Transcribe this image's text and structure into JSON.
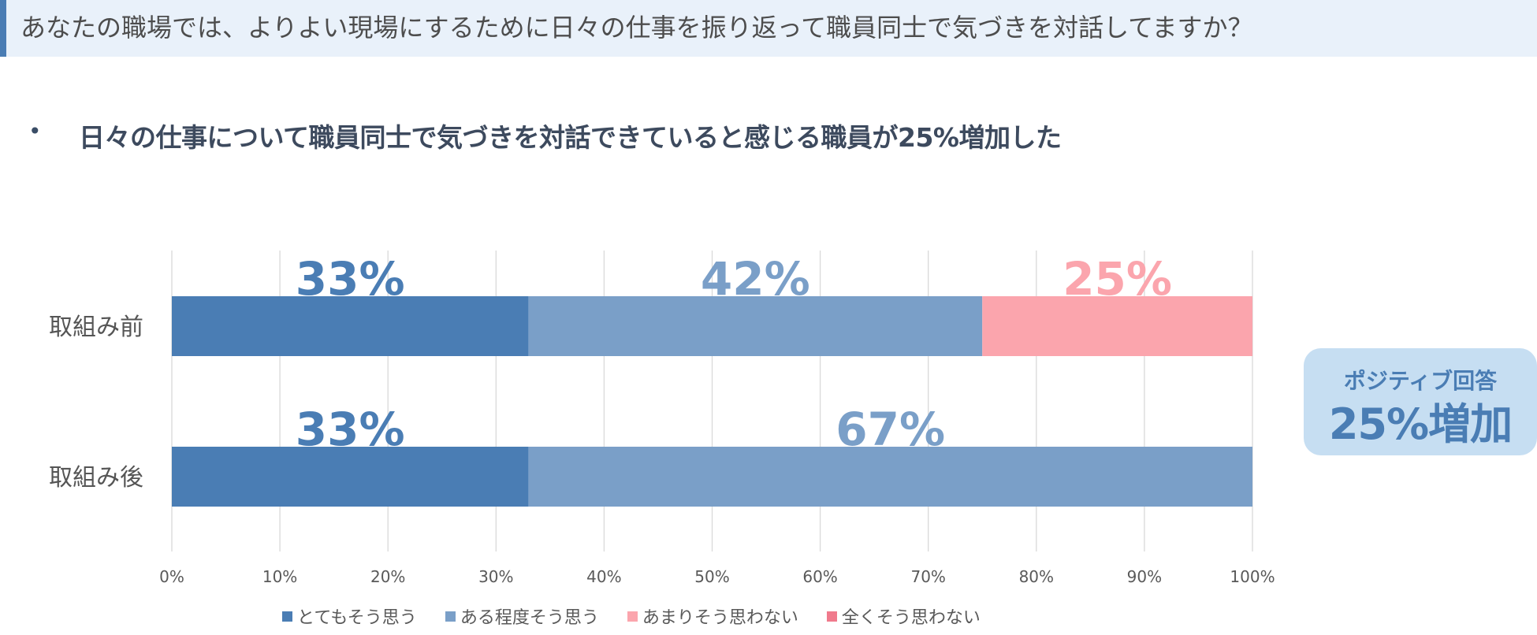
{
  "header": {
    "title": "あなたの職場では、よりよい現場にするために日々の仕事を振り返って職員同士で気づきを対話してますか？"
  },
  "bullet": {
    "mark": "•",
    "text": "日々の仕事について職員同士で気づきを対話できていると感じる職員が25%増加した"
  },
  "badge": {
    "line1": "ポジティブ回答",
    "line2": "25%増加"
  },
  "chart_data": {
    "type": "bar",
    "orientation": "horizontal",
    "stacked": true,
    "categories": [
      "取組み前",
      "取組み後"
    ],
    "series": [
      {
        "name": "とてもそう思う",
        "color": "#4a7db4",
        "values": [
          33,
          33
        ],
        "labels": [
          "33%",
          "33%"
        ]
      },
      {
        "name": "ある程度そう思う",
        "color": "#7a9fc8",
        "values": [
          42,
          67
        ],
        "labels": [
          "42%",
          "67%"
        ]
      },
      {
        "name": "あまりそう思わない",
        "color": "#fba5ad",
        "values": [
          25,
          0
        ],
        "labels": [
          "25%",
          ""
        ]
      },
      {
        "name": "全くそう思わない",
        "color": "#f07a8c",
        "values": [
          0,
          0
        ],
        "labels": [
          "",
          ""
        ]
      }
    ],
    "xlim": [
      0,
      100
    ],
    "xticks": [
      "0%",
      "10%",
      "20%",
      "30%",
      "40%",
      "50%",
      "60%",
      "70%",
      "80%",
      "90%",
      "100%"
    ],
    "grid": true,
    "legend": "bottom"
  }
}
